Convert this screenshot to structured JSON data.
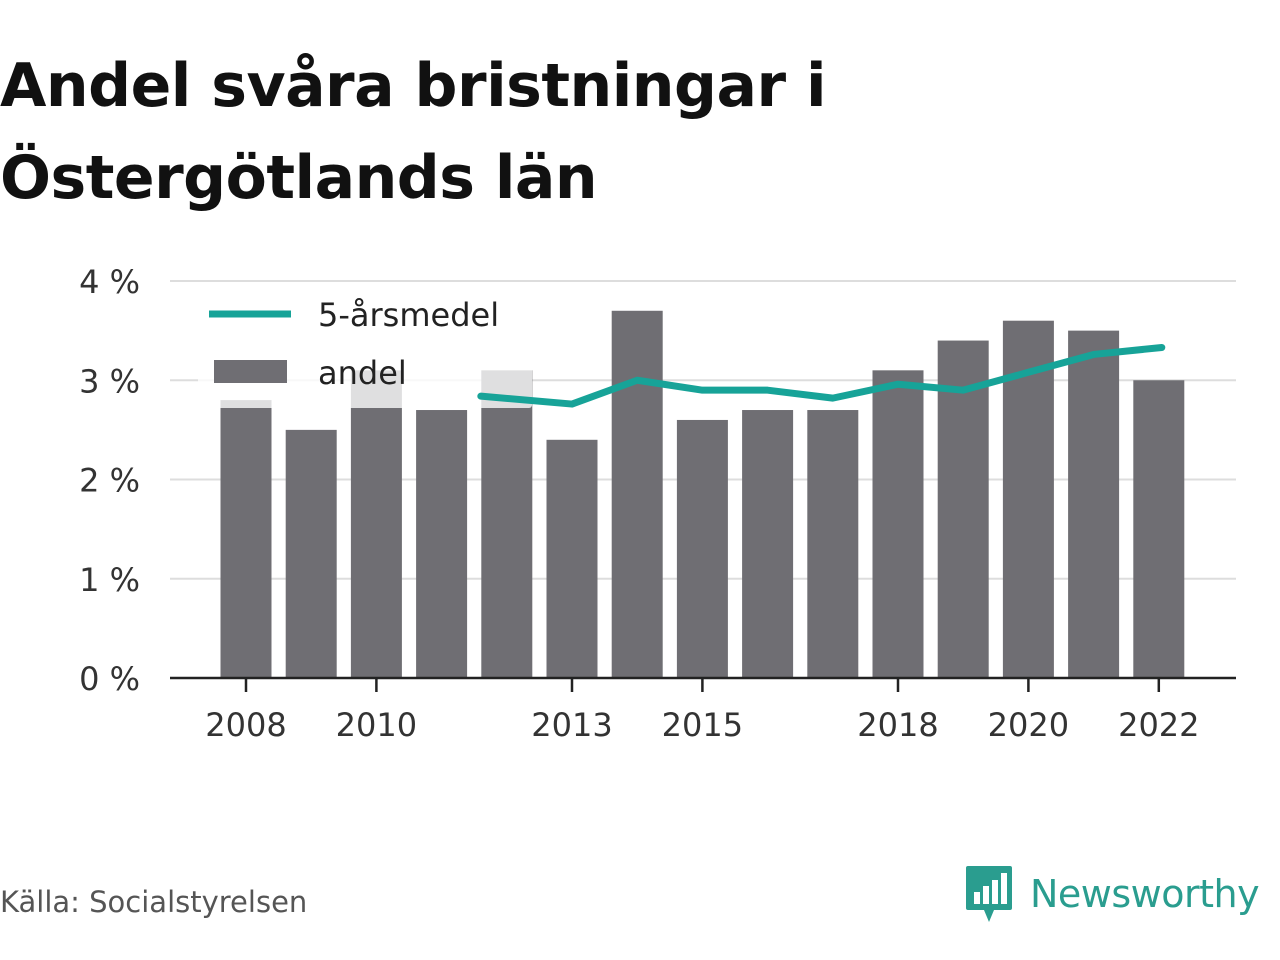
{
  "title_lines": [
    "Andel svåra bristningar i",
    "Östergötlands län"
  ],
  "source": "Källa: Socialstyrelsen",
  "brand": {
    "name": "Newsworthy",
    "icon": "newsworthy-logo-icon",
    "color": "#2a9d8f"
  },
  "colors": {
    "bar": "#6f6e73",
    "line": "#17a398",
    "grid": "#dddddd",
    "axis": "#222222"
  },
  "chart_data": {
    "type": "bar",
    "x": [
      2008,
      2009,
      2010,
      2011,
      2012,
      2013,
      2014,
      2015,
      2016,
      2017,
      2018,
      2019,
      2020,
      2021,
      2022
    ],
    "x_tick_labels": [
      "2008",
      "2010",
      "2013",
      "2015",
      "2018",
      "2020",
      "2022"
    ],
    "y_tick_labels": [
      "0 %",
      "1 %",
      "2 %",
      "3 %",
      "4 %"
    ],
    "ylim": [
      0,
      4
    ],
    "grid": true,
    "legend_position": "top-left",
    "series": [
      {
        "name": "andel",
        "type": "bar",
        "values": [
          2.8,
          2.5,
          3.1,
          2.7,
          3.1,
          2.4,
          3.7,
          2.6,
          2.7,
          2.7,
          3.1,
          3.4,
          3.6,
          3.5,
          3.0
        ]
      },
      {
        "name": "5-årsmedel",
        "type": "line",
        "values": [
          null,
          null,
          null,
          null,
          2.84,
          2.76,
          3.0,
          2.9,
          2.9,
          2.82,
          2.96,
          2.9,
          3.08,
          3.26,
          3.33
        ]
      }
    ]
  }
}
